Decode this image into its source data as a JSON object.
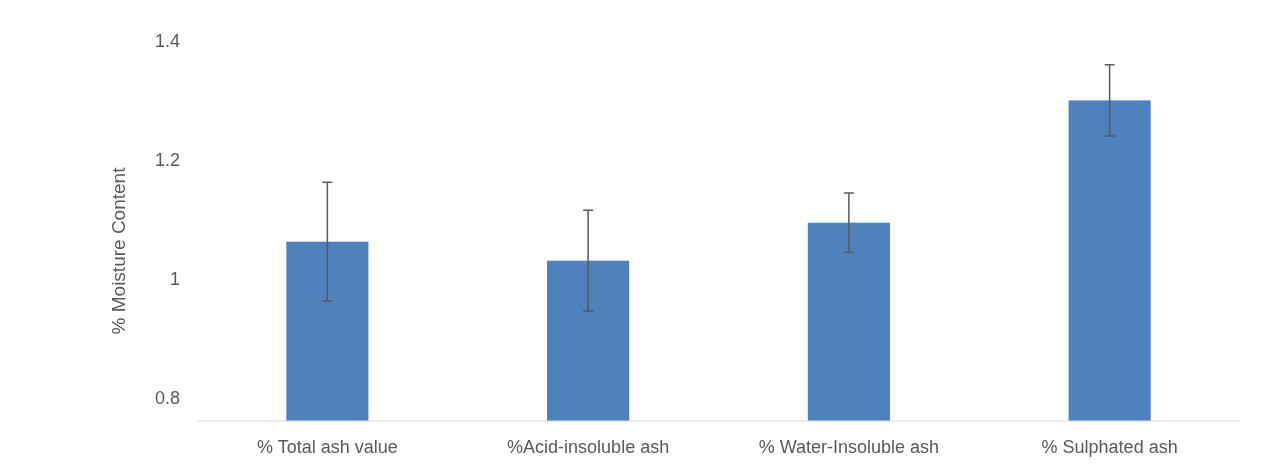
{
  "chart_data": {
    "type": "bar",
    "ylabel": "% Moisture Content",
    "categories": [
      "% Total ash value",
      "%Acid-insoluble ash",
      "% Water-Insoluble ash",
      "% Sulphated ash"
    ],
    "values": [
      1.062,
      1.03,
      1.094,
      1.3
    ],
    "errors": [
      0.1,
      0.085,
      0.05,
      0.06
    ],
    "color": "#4f81bd",
    "ylim": [
      0.76,
      1.4
    ],
    "yticks": [
      0.8,
      1,
      1.2,
      1.4
    ],
    "grid": false
  }
}
